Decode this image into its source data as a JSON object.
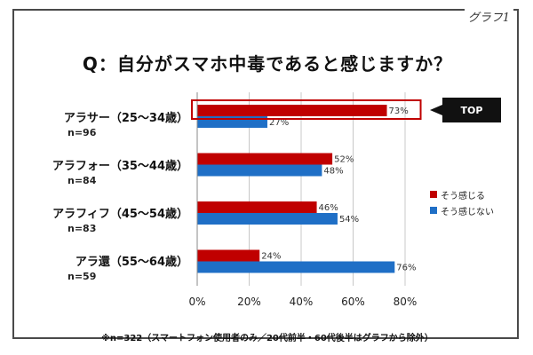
{
  "corner_label": "グラフ1",
  "chart_data": {
    "type": "bar",
    "orientation": "horizontal",
    "title": "Q：自分がスマホ中毒であると感じますか？",
    "categories": [
      "アラサー（25～34歳）",
      "アラフォー（35～44歳）",
      "アラフィフ（45～54歳）",
      "アラ還（55～64歳）"
    ],
    "category_n": [
      "n=96",
      "n=84",
      "n=83",
      "n=59"
    ],
    "series": [
      {
        "name": "そう感じる",
        "color": "#c00000",
        "values": [
          73,
          52,
          46,
          24
        ]
      },
      {
        "name": "そう感じない",
        "color": "#1f6fc6",
        "values": [
          27,
          48,
          54,
          76
        ]
      }
    ],
    "value_suffix": "%",
    "xlim": [
      0,
      80
    ],
    "xticks": [
      0,
      20,
      40,
      60,
      80
    ],
    "xtick_labels": [
      "0%",
      "20%",
      "40%",
      "60%",
      "80%"
    ],
    "grid": "vertical",
    "legend": "right"
  },
  "highlight": {
    "label": "TOP",
    "category_index": 0
  },
  "footnote": "※n=322（スマートフォン使用者のみ／20代前半・60代後半はグラフから除外）"
}
